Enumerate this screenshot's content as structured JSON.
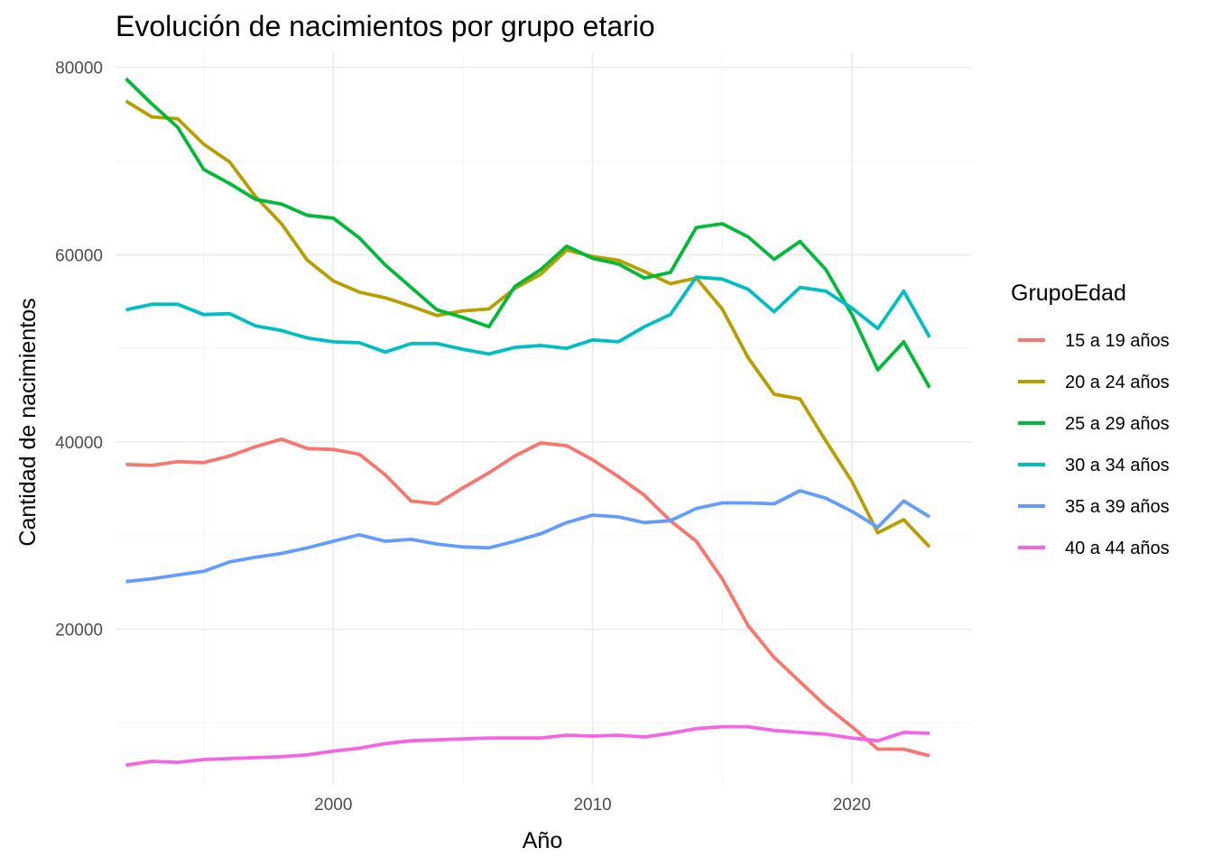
{
  "chart_data": {
    "type": "line",
    "title": "Evolución de nacimientos por grupo etario",
    "xlabel": "Año",
    "ylabel": "Cantidad de nacimientos",
    "xlim": [
      1991.6,
      2024.6
    ],
    "ylim": [
      3400,
      81600
    ],
    "x_ticks": [
      2000,
      2010,
      2020
    ],
    "x_tick_labels": [
      "2000",
      "2010",
      "2020"
    ],
    "y_ticks": [
      20000,
      40000,
      60000,
      80000
    ],
    "y_tick_labels": [
      "20000",
      "40000",
      "60000",
      "80000"
    ],
    "grid": true,
    "legend_title": "GrupoEdad",
    "legend_position": "right",
    "x": [
      1992,
      1993,
      1994,
      1995,
      1996,
      1997,
      1998,
      1999,
      2000,
      2001,
      2002,
      2003,
      2004,
      2005,
      2006,
      2007,
      2008,
      2009,
      2010,
      2011,
      2012,
      2013,
      2014,
      2015,
      2016,
      2017,
      2018,
      2019,
      2020,
      2021,
      2022,
      2023
    ],
    "series": [
      {
        "name": "15 a 19 años",
        "color": "#F8766D",
        "values": [
          37600,
          37500,
          37900,
          37800,
          38500,
          39500,
          40300,
          39300,
          39200,
          38700,
          36500,
          33700,
          33400,
          35100,
          36700,
          38500,
          39900,
          39600,
          38100,
          36300,
          34300,
          31600,
          29400,
          25400,
          20400,
          17000,
          14400,
          11800,
          9600,
          7200,
          7200,
          6500
        ]
      },
      {
        "name": "20 a 24 años",
        "color": "#B79F00",
        "values": [
          76400,
          74700,
          74500,
          71800,
          69900,
          66200,
          63300,
          59400,
          57200,
          56000,
          55400,
          54500,
          53500,
          54000,
          54200,
          56400,
          57900,
          60500,
          59800,
          59400,
          58200,
          56900,
          57500,
          54200,
          49000,
          45100,
          44600,
          40100,
          35800,
          30300,
          31700,
          28800
        ]
      },
      {
        "name": "25 a 29 años",
        "color": "#00BA38",
        "values": [
          78800,
          76100,
          73600,
          69100,
          67600,
          65900,
          65400,
          64200,
          63900,
          61800,
          58900,
          56500,
          54100,
          53300,
          52300,
          56600,
          58400,
          60900,
          59600,
          59000,
          57500,
          58100,
          62900,
          63300,
          61900,
          59500,
          61400,
          58400,
          53600,
          47700,
          50700,
          45800
        ]
      },
      {
        "name": "30 a 34 años",
        "color": "#00BFC4",
        "values": [
          54100,
          54700,
          54700,
          53600,
          53700,
          52400,
          51900,
          51100,
          50700,
          50600,
          49600,
          50500,
          50500,
          49900,
          49400,
          50100,
          50300,
          50000,
          50900,
          50700,
          52300,
          53600,
          57600,
          57400,
          56300,
          53900,
          56500,
          56100,
          54300,
          52100,
          56100,
          51200
        ]
      },
      {
        "name": "35 a 39 años",
        "color": "#619CFF",
        "values": [
          25100,
          25400,
          25800,
          26200,
          27200,
          27700,
          28100,
          28700,
          29400,
          30100,
          29400,
          29600,
          29100,
          28800,
          28700,
          29400,
          30200,
          31400,
          32200,
          32000,
          31400,
          31600,
          32900,
          33500,
          33500,
          33400,
          34800,
          34000,
          32600,
          30900,
          33700,
          32000
        ]
      },
      {
        "name": "40 a 44 años",
        "color": "#F564E3",
        "values": [
          5500,
          5900,
          5800,
          6100,
          6200,
          6300,
          6400,
          6600,
          7000,
          7300,
          7800,
          8100,
          8200,
          8300,
          8400,
          8400,
          8400,
          8700,
          8600,
          8700,
          8500,
          8900,
          9400,
          9600,
          9600,
          9200,
          9000,
          8800,
          8400,
          8100,
          9000,
          8900
        ]
      }
    ]
  }
}
